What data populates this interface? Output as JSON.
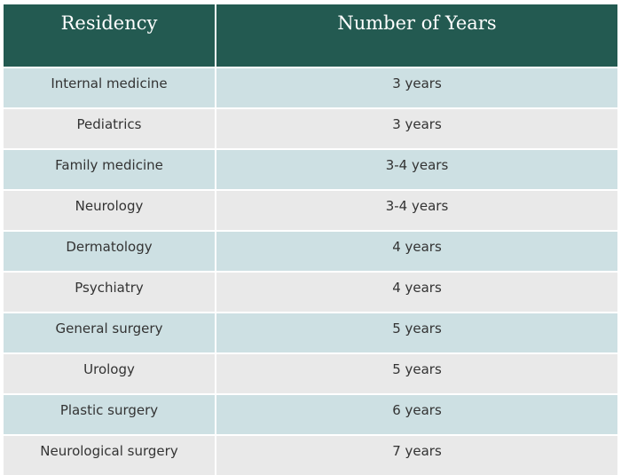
{
  "table": {
    "headers": [
      "Residency",
      "Number of Years"
    ],
    "rows": [
      {
        "residency": "Internal medicine",
        "years": "3 years"
      },
      {
        "residency": "Pediatrics",
        "years": "3 years"
      },
      {
        "residency": "Family medicine",
        "years": "3-4 years"
      },
      {
        "residency": "Neurology",
        "years": "3-4 years"
      },
      {
        "residency": "Dermatology",
        "years": "4 years"
      },
      {
        "residency": "Psychiatry",
        "years": "4 years"
      },
      {
        "residency": "General surgery",
        "years": "5 years"
      },
      {
        "residency": "Urology",
        "years": "5 years"
      },
      {
        "residency": "Plastic surgery",
        "years": "6 years"
      },
      {
        "residency": "Neurological surgery",
        "years": "7 years"
      }
    ]
  },
  "colors": {
    "header_bg": "#235a51",
    "header_text": "#ffffff",
    "row_teal": "#cde0e3",
    "row_grey": "#e9e9e9",
    "cell_text": "#333333"
  }
}
